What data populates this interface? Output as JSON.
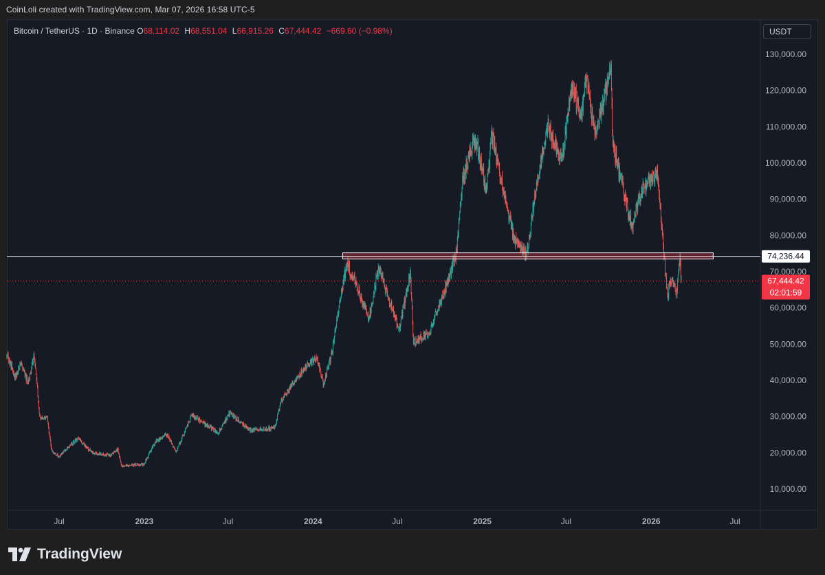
{
  "header": {
    "credit": "CoinLoli created with TradingView.com, Mar 07, 2026 16:58 UTC-5"
  },
  "legend": {
    "symbol": "Bitcoin / TetherUS · 1D · Binance",
    "open_label": "O",
    "open": "68,114.02",
    "high_label": "H",
    "high": "68,551.04",
    "low_label": "L",
    "low": "66,915.26",
    "close_label": "C",
    "close": "67,444.42",
    "change": "−669.60 (−0.98%)"
  },
  "currency_button": "USDT",
  "branding": {
    "logo_text": "TradingView",
    "logo_icon": "tradingview-logo-icon"
  },
  "colors": {
    "up": "#26a69a",
    "down": "#ef5350",
    "background": "#161a25",
    "level_line": "#ffffff",
    "zone_fill": "#f23645"
  },
  "chart_data": {
    "type": "candlestick",
    "title": "Bitcoin / TetherUS · 1D · Binance",
    "y_axis": {
      "label": "USDT",
      "ticks": [
        "130,000.00",
        "120,000.00",
        "110,000.00",
        "100,000.00",
        "90,000.00",
        "80,000.00",
        "70,000.00",
        "60,000.00",
        "50,000.00",
        "40,000.00",
        "30,000.00",
        "20,000.00",
        "10,000.00"
      ],
      "range": [
        0,
        135000
      ]
    },
    "x_axis": {
      "ticks": [
        "Jul",
        "2023",
        "Jul",
        "2024",
        "Jul",
        "2025",
        "Jul",
        "2026",
        "Jul"
      ],
      "range": [
        "2022-03-10",
        "2026-08-25"
      ]
    },
    "grid": false,
    "price_path": [
      [
        "2022-03-10",
        47000
      ],
      [
        "2022-03-28",
        41000
      ],
      [
        "2022-04-10",
        45000
      ],
      [
        "2022-04-25",
        39000
      ],
      [
        "2022-05-08",
        47500
      ],
      [
        "2022-05-20",
        30000
      ],
      [
        "2022-06-05",
        29500
      ],
      [
        "2022-06-15",
        20500
      ],
      [
        "2022-07-01",
        19000
      ],
      [
        "2022-08-10",
        24000
      ],
      [
        "2022-09-10",
        20000
      ],
      [
        "2022-10-20",
        19200
      ],
      [
        "2022-11-05",
        21000
      ],
      [
        "2022-11-12",
        16500
      ],
      [
        "2022-12-31",
        16800
      ],
      [
        "2023-01-25",
        23000
      ],
      [
        "2023-02-20",
        25000
      ],
      [
        "2023-03-10",
        20000
      ],
      [
        "2023-04-14",
        30500
      ],
      [
        "2023-06-10",
        25500
      ],
      [
        "2023-07-05",
        31000
      ],
      [
        "2023-08-20",
        26000
      ],
      [
        "2023-10-10",
        27000
      ],
      [
        "2023-10-25",
        34500
      ],
      [
        "2023-12-05",
        42000
      ],
      [
        "2024-01-10",
        46500
      ],
      [
        "2024-01-23",
        39000
      ],
      [
        "2024-02-10",
        47000
      ],
      [
        "2024-02-28",
        62000
      ],
      [
        "2024-03-14",
        72500
      ],
      [
        "2024-04-13",
        63000
      ],
      [
        "2024-05-01",
        57000
      ],
      [
        "2024-05-21",
        71000
      ],
      [
        "2024-07-05",
        54000
      ],
      [
        "2024-07-29",
        69500
      ],
      [
        "2024-08-05",
        50500
      ],
      [
        "2024-09-06",
        53000
      ],
      [
        "2024-10-15",
        66000
      ],
      [
        "2024-11-06",
        75500
      ],
      [
        "2024-11-20",
        96000
      ],
      [
        "2024-12-17",
        107000
      ],
      [
        "2025-01-10",
        92000
      ],
      [
        "2025-01-21",
        108000
      ],
      [
        "2025-03-10",
        79000
      ],
      [
        "2025-04-07",
        75000
      ],
      [
        "2025-05-01",
        96000
      ],
      [
        "2025-05-22",
        111000
      ],
      [
        "2025-06-22",
        100000
      ],
      [
        "2025-07-14",
        122000
      ],
      [
        "2025-08-02",
        112000
      ],
      [
        "2025-08-14",
        124000
      ],
      [
        "2025-09-01",
        108000
      ],
      [
        "2025-10-06",
        125500
      ],
      [
        "2025-10-10",
        105000
      ],
      [
        "2025-11-21",
        82000
      ],
      [
        "2025-12-10",
        92000
      ],
      [
        "2026-01-14",
        97500
      ],
      [
        "2026-02-05",
        63000
      ],
      [
        "2026-02-12",
        68000
      ],
      [
        "2026-02-25",
        64000
      ],
      [
        "2026-03-04",
        73500
      ],
      [
        "2026-03-07",
        67444
      ]
    ],
    "annotations": [
      {
        "type": "horizontal_line",
        "value": 74236.44,
        "label": "74,236.44"
      },
      {
        "type": "zone",
        "from": 73500,
        "to": 75200,
        "start": "2024-03-05",
        "end": "2026-05-15"
      },
      {
        "type": "last_price",
        "value": 67444.42,
        "label": "67,444.42",
        "countdown": "02:01:59"
      }
    ]
  }
}
